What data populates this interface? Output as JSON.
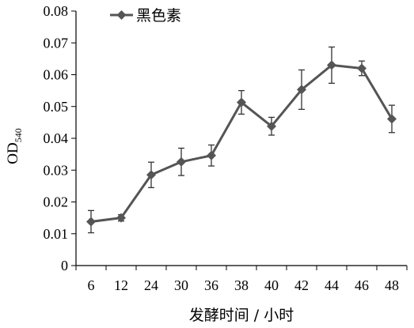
{
  "chart_data": {
    "type": "line",
    "categories": [
      "6",
      "12",
      "24",
      "30",
      "36",
      "38",
      "40",
      "42",
      "44",
      "46",
      "48"
    ],
    "series": [
      {
        "name": "黑色素",
        "color": "#555555",
        "marker": "diamond",
        "values": [
          0.0138,
          0.015,
          0.0285,
          0.0326,
          0.0346,
          0.0513,
          0.0438,
          0.0553,
          0.063,
          0.062,
          0.0461
        ],
        "errors": [
          0.0035,
          0.001,
          0.004,
          0.0043,
          0.0033,
          0.0037,
          0.0028,
          0.0062,
          0.0057,
          0.0023,
          0.0043
        ]
      }
    ],
    "ylim": [
      0,
      0.08
    ],
    "yticks": [
      "0",
      "0.01",
      "0.02",
      "0.03",
      "0.04",
      "0.05",
      "0.06",
      "0.07",
      "0.08"
    ],
    "ytick_values": [
      0,
      0.01,
      0.02,
      0.03,
      0.04,
      0.05,
      0.06,
      0.07,
      0.08
    ],
    "xlabel": "发酵时间 / 小时",
    "ylabel_main": "OD",
    "ylabel_sub": "540",
    "legend_position": "top-left",
    "grid": false
  }
}
